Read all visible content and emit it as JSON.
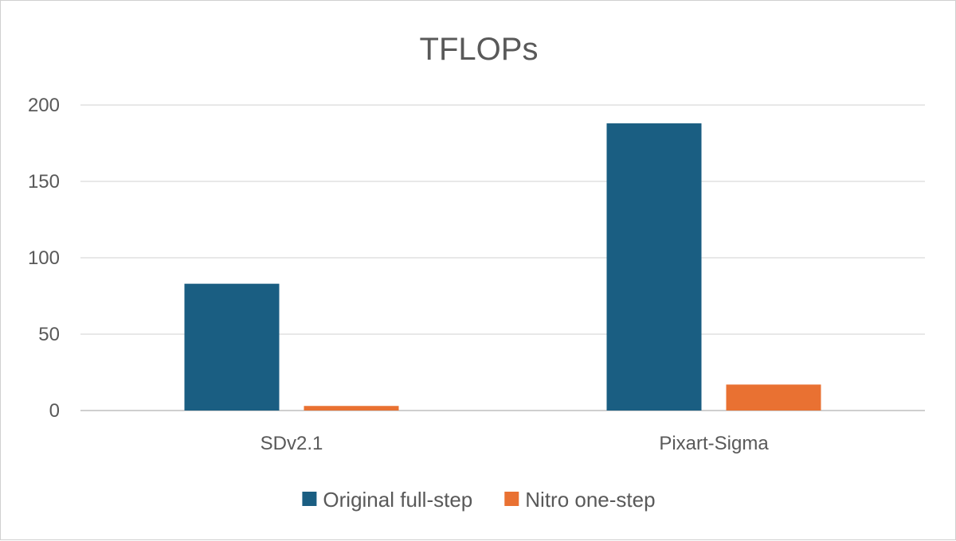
{
  "chart_data": {
    "type": "bar",
    "title": "TFLOPs",
    "categories": [
      "SDv2.1",
      "Pixart-Sigma"
    ],
    "series": [
      {
        "name": "Original full-step",
        "values": [
          83,
          188
        ],
        "color": "#1a5e82"
      },
      {
        "name": "Nitro one-step",
        "values": [
          3,
          17
        ],
        "color": "#e97132"
      }
    ],
    "ylim": [
      0,
      200
    ],
    "yticks": [
      0,
      50,
      100,
      150,
      200
    ],
    "grid": true,
    "legend": "bottom"
  }
}
